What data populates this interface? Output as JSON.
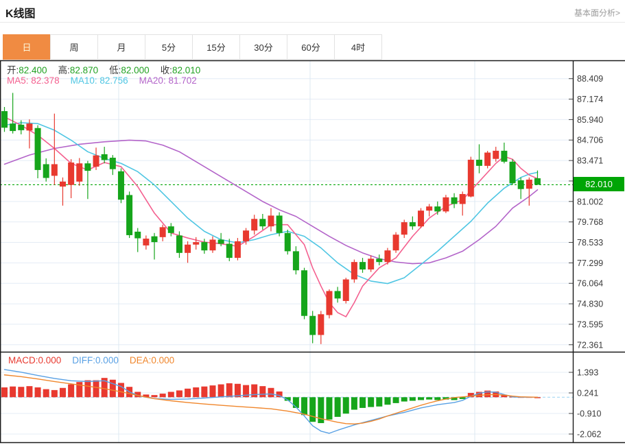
{
  "header": {
    "title": "K线图",
    "analysis_link": "基本面分析>"
  },
  "tabs": {
    "items": [
      "日",
      "周",
      "月",
      "5分",
      "15分",
      "30分",
      "60分",
      "4时"
    ],
    "active_index": 0
  },
  "ohlc": {
    "open_label": "开:",
    "open": "82.400",
    "high_label": "高:",
    "high": "82.870",
    "low_label": "低:",
    "low": "82.000",
    "close_label": "收:",
    "close": "82.010"
  },
  "ma_row": {
    "ma5_label": "MA5:",
    "ma5": "82.378",
    "ma10_label": "MA10:",
    "ma10": "82.756",
    "ma20_label": "MA20:",
    "ma20": "81.702"
  },
  "macd_row": {
    "macd_label": "MACD:",
    "macd": "0.000",
    "diff_label": "DIFF:",
    "diff": "0.000",
    "dea_label": "DEA:",
    "dea": "0.000"
  },
  "price_badge": "82.010",
  "colors": {
    "up": "#e8392f",
    "down": "#16a51b",
    "ma5": "#f4608f",
    "ma10": "#4fc6e3",
    "ma20": "#b364c9",
    "diff": "#58a0e4",
    "dea": "#f0862b",
    "price_line": "#00a506",
    "badge_bg": "#00a506",
    "grid": "#e4ecf5",
    "vgrid": "#dce8f2",
    "axis": "#1a1a1a",
    "tick_text": "#3a3a3a",
    "zero_dash": "#a3d7f2",
    "tab_active_bg": "#f08b42"
  },
  "chart_data": {
    "type": "candlestick_with_macd",
    "title": "K线图 (daily candlestick with MA5/MA10/MA20 and MACD)",
    "main": {
      "yticks": [
        88.409,
        87.174,
        85.94,
        84.706,
        83.471,
        82.237,
        81.002,
        79.768,
        78.533,
        77.299,
        76.064,
        74.83,
        73.595,
        72.361
      ],
      "ylim": [
        71.8,
        89.0
      ],
      "price_line": 82.01,
      "candles_ohlc": [
        [
          86.45,
          86.7,
          85.2,
          85.45
        ],
        [
          85.7,
          87.55,
          85.1,
          85.25
        ],
        [
          85.63,
          85.9,
          85.05,
          85.3
        ],
        [
          85.28,
          85.95,
          84.2,
          85.7
        ],
        [
          85.43,
          85.6,
          82.4,
          82.9
        ],
        [
          83.25,
          83.6,
          82.2,
          82.42
        ],
        [
          82.55,
          86.3,
          82.0,
          83.25
        ],
        [
          81.9,
          82.45,
          80.75,
          82.2
        ],
        [
          82.0,
          83.55,
          81.2,
          83.35
        ],
        [
          82.2,
          83.62,
          81.95,
          83.3
        ],
        [
          83.3,
          83.45,
          81.15,
          82.85
        ],
        [
          83.1,
          84.25,
          82.9,
          83.78
        ],
        [
          83.85,
          84.3,
          83.3,
          83.5
        ],
        [
          83.64,
          83.8,
          82.6,
          82.95
        ],
        [
          82.82,
          83.0,
          80.9,
          81.11
        ],
        [
          81.39,
          81.6,
          78.8,
          78.97
        ],
        [
          79.18,
          79.4,
          77.95,
          78.78
        ],
        [
          78.35,
          78.95,
          78.1,
          78.76
        ],
        [
          78.9,
          79.1,
          77.5,
          78.55
        ],
        [
          78.85,
          79.6,
          78.6,
          79.45
        ],
        [
          79.5,
          79.7,
          78.9,
          79.1
        ],
        [
          78.95,
          79.2,
          77.6,
          77.9
        ],
        [
          77.9,
          78.6,
          77.3,
          78.4
        ],
        [
          78.4,
          78.85,
          78.1,
          78.55
        ],
        [
          78.55,
          78.75,
          77.85,
          78.05
        ],
        [
          78.05,
          78.9,
          77.9,
          78.7
        ],
        [
          78.7,
          79.1,
          78.3,
          78.45
        ],
        [
          78.45,
          78.75,
          77.4,
          77.6
        ],
        [
          77.6,
          78.8,
          77.45,
          78.6
        ],
        [
          78.6,
          79.4,
          78.4,
          79.25
        ],
        [
          79.25,
          80.2,
          79.0,
          79.95
        ],
        [
          79.95,
          80.25,
          79.3,
          79.5
        ],
        [
          79.5,
          80.6,
          79.2,
          80.15
        ],
        [
          80.15,
          80.35,
          78.9,
          79.1
        ],
        [
          79.1,
          79.3,
          77.8,
          78.0
        ],
        [
          78.0,
          78.3,
          76.6,
          76.85
        ],
        [
          76.85,
          77.0,
          73.9,
          74.1
        ],
        [
          74.1,
          74.4,
          72.45,
          72.95
        ],
        [
          72.95,
          74.4,
          72.4,
          74.2
        ],
        [
          74.15,
          75.7,
          73.95,
          75.6
        ],
        [
          75.6,
          75.85,
          74.9,
          75.15
        ],
        [
          75.0,
          76.4,
          74.85,
          76.3
        ],
        [
          76.3,
          77.5,
          76.1,
          77.35
        ],
        [
          77.35,
          77.6,
          76.7,
          76.9
        ],
        [
          76.9,
          77.75,
          76.75,
          77.55
        ],
        [
          77.55,
          77.8,
          77.15,
          77.35
        ],
        [
          77.35,
          78.2,
          77.2,
          78.05
        ],
        [
          78.05,
          79.15,
          77.9,
          79.0
        ],
        [
          79.0,
          79.9,
          78.8,
          79.75
        ],
        [
          79.75,
          80.1,
          79.3,
          79.5
        ],
        [
          79.5,
          80.6,
          79.4,
          80.45
        ],
        [
          80.45,
          80.85,
          80.1,
          80.7
        ],
        [
          80.7,
          81.0,
          80.2,
          80.4
        ],
        [
          80.4,
          81.4,
          80.3,
          81.25
        ],
        [
          81.25,
          81.5,
          80.6,
          80.85
        ],
        [
          80.85,
          81.6,
          80.15,
          81.45
        ],
        [
          81.3,
          83.7,
          81.25,
          83.52
        ],
        [
          83.52,
          84.45,
          82.7,
          83.15
        ],
        [
          83.15,
          84.05,
          83.0,
          83.95
        ],
        [
          83.57,
          84.3,
          83.4,
          84.06
        ],
        [
          84.06,
          84.55,
          83.3,
          83.4
        ],
        [
          83.4,
          83.55,
          82.0,
          82.1
        ],
        [
          82.28,
          82.45,
          81.15,
          81.75
        ],
        [
          81.77,
          82.45,
          80.75,
          82.32
        ],
        [
          82.4,
          82.87,
          82.0,
          82.01
        ]
      ],
      "ma5_points": [
        [
          0,
          86.1
        ],
        [
          2,
          85.6
        ],
        [
          4,
          85.0
        ],
        [
          6,
          84.2
        ],
        [
          8,
          83.3
        ],
        [
          10,
          82.9
        ],
        [
          12,
          83.35
        ],
        [
          14,
          83.1
        ],
        [
          16,
          81.9
        ],
        [
          18,
          80.3
        ],
        [
          20,
          79.1
        ],
        [
          22,
          78.8
        ],
        [
          24,
          78.55
        ],
        [
          26,
          78.45
        ],
        [
          28,
          78.3
        ],
        [
          30,
          78.9
        ],
        [
          32,
          79.6
        ],
        [
          34,
          79.6
        ],
        [
          36,
          78.4
        ],
        [
          37,
          77.0
        ],
        [
          38,
          75.9
        ],
        [
          39,
          74.9
        ],
        [
          40,
          74.3
        ],
        [
          41,
          74.05
        ],
        [
          42,
          74.9
        ],
        [
          43,
          75.9
        ],
        [
          45,
          77.0
        ],
        [
          47,
          77.6
        ],
        [
          49,
          78.9
        ],
        [
          51,
          80.0
        ],
        [
          53,
          80.7
        ],
        [
          55,
          81.1
        ],
        [
          57,
          82.2
        ],
        [
          59,
          83.3
        ],
        [
          60,
          83.72
        ],
        [
          61,
          83.55
        ],
        [
          62,
          83.0
        ],
        [
          63,
          82.6
        ],
        [
          64,
          82.378
        ]
      ],
      "ma10_points": [
        [
          0,
          85.6
        ],
        [
          2,
          85.75
        ],
        [
          4,
          85.7
        ],
        [
          6,
          85.3
        ],
        [
          8,
          84.7
        ],
        [
          10,
          84.0
        ],
        [
          12,
          83.6
        ],
        [
          14,
          83.3
        ],
        [
          16,
          82.8
        ],
        [
          18,
          82.0
        ],
        [
          20,
          81.0
        ],
        [
          22,
          80.0
        ],
        [
          24,
          79.2
        ],
        [
          26,
          78.7
        ],
        [
          28,
          78.5
        ],
        [
          30,
          78.7
        ],
        [
          32,
          79.0
        ],
        [
          34,
          79.2
        ],
        [
          36,
          78.9
        ],
        [
          38,
          78.2
        ],
        [
          40,
          77.3
        ],
        [
          42,
          76.6
        ],
        [
          44,
          76.2
        ],
        [
          46,
          76.05
        ],
        [
          48,
          76.4
        ],
        [
          50,
          77.2
        ],
        [
          52,
          78.0
        ],
        [
          54,
          78.9
        ],
        [
          56,
          79.8
        ],
        [
          58,
          80.9
        ],
        [
          60,
          81.8
        ],
        [
          62,
          82.45
        ],
        [
          63,
          82.65
        ],
        [
          64,
          82.756
        ]
      ],
      "ma20_points": [
        [
          0,
          83.25
        ],
        [
          3,
          83.8
        ],
        [
          6,
          84.2
        ],
        [
          9,
          84.45
        ],
        [
          12,
          84.6
        ],
        [
          15,
          84.7
        ],
        [
          17,
          84.65
        ],
        [
          19,
          84.4
        ],
        [
          21,
          84.0
        ],
        [
          23,
          83.4
        ],
        [
          25,
          82.8
        ],
        [
          27,
          82.2
        ],
        [
          29,
          81.6
        ],
        [
          31,
          81.0
        ],
        [
          33,
          80.5
        ],
        [
          35,
          80.1
        ],
        [
          37,
          79.5
        ],
        [
          39,
          78.9
        ],
        [
          41,
          78.35
        ],
        [
          43,
          77.9
        ],
        [
          45,
          77.55
        ],
        [
          47,
          77.35
        ],
        [
          49,
          77.25
        ],
        [
          51,
          77.3
        ],
        [
          53,
          77.6
        ],
        [
          55,
          78.0
        ],
        [
          57,
          78.7
        ],
        [
          59,
          79.5
        ],
        [
          61,
          80.6
        ],
        [
          63,
          81.3
        ],
        [
          64,
          81.702
        ]
      ]
    },
    "macd": {
      "yticks": [
        1.393,
        0.241,
        -0.91,
        -2.062
      ],
      "ylim": [
        -2.6,
        2.0
      ],
      "histogram": [
        0.55,
        0.6,
        0.58,
        0.62,
        0.55,
        0.45,
        0.4,
        0.52,
        0.72,
        0.85,
        0.95,
        0.95,
        1.08,
        0.98,
        0.8,
        0.58,
        0.3,
        0.15,
        0.12,
        0.2,
        0.3,
        0.38,
        0.48,
        0.55,
        0.6,
        0.66,
        0.72,
        0.78,
        0.75,
        0.68,
        0.72,
        0.62,
        0.52,
        0.32,
        -0.2,
        -0.6,
        -1.0,
        -1.38,
        -1.45,
        -1.25,
        -1.1,
        -0.92,
        -0.7,
        -0.6,
        -0.55,
        -0.52,
        -0.42,
        -0.33,
        -0.24,
        -0.2,
        -0.16,
        -0.13,
        -0.16,
        -0.13,
        -0.16,
        -0.1,
        0.24,
        0.3,
        0.37,
        0.32,
        0.14,
        0.04,
        0.02,
        0.02,
        0.0
      ],
      "diff_points": [
        [
          0,
          1.55
        ],
        [
          2,
          1.4
        ],
        [
          4,
          1.22
        ],
        [
          6,
          1.05
        ],
        [
          8,
          0.92
        ],
        [
          10,
          0.88
        ],
        [
          12,
          0.92
        ],
        [
          14,
          0.6
        ],
        [
          15,
          0.3
        ],
        [
          16,
          0.1
        ],
        [
          17,
          0.0
        ],
        [
          18,
          -0.08
        ],
        [
          20,
          -0.12
        ],
        [
          22,
          -0.1
        ],
        [
          24,
          -0.05
        ],
        [
          26,
          0.02
        ],
        [
          28,
          0.08
        ],
        [
          30,
          0.15
        ],
        [
          32,
          0.18
        ],
        [
          33,
          0.1
        ],
        [
          34,
          -0.15
        ],
        [
          35,
          -0.55
        ],
        [
          36,
          -1.05
        ],
        [
          37,
          -1.6
        ],
        [
          38,
          -1.9
        ],
        [
          39,
          -2.02
        ],
        [
          40,
          -1.85
        ],
        [
          42,
          -1.55
        ],
        [
          44,
          -1.3
        ],
        [
          46,
          -1.05
        ],
        [
          48,
          -0.85
        ],
        [
          50,
          -0.6
        ],
        [
          52,
          -0.42
        ],
        [
          54,
          -0.3
        ],
        [
          55,
          -0.18
        ],
        [
          56,
          0.05
        ],
        [
          57,
          0.22
        ],
        [
          58,
          0.3
        ],
        [
          59,
          0.28
        ],
        [
          60,
          0.15
        ],
        [
          61,
          0.02
        ],
        [
          62,
          0.0
        ],
        [
          64,
          0.0
        ]
      ],
      "dea_points": [
        [
          0,
          1.25
        ],
        [
          2,
          1.15
        ],
        [
          4,
          1.02
        ],
        [
          6,
          0.88
        ],
        [
          8,
          0.75
        ],
        [
          10,
          0.62
        ],
        [
          12,
          0.48
        ],
        [
          14,
          0.3
        ],
        [
          16,
          0.1
        ],
        [
          18,
          -0.08
        ],
        [
          20,
          -0.2
        ],
        [
          22,
          -0.3
        ],
        [
          24,
          -0.38
        ],
        [
          26,
          -0.45
        ],
        [
          28,
          -0.52
        ],
        [
          30,
          -0.58
        ],
        [
          32,
          -0.65
        ],
        [
          34,
          -0.78
        ],
        [
          36,
          -0.95
        ],
        [
          38,
          -1.2
        ],
        [
          40,
          -1.4
        ],
        [
          41,
          -1.48
        ],
        [
          42,
          -1.5
        ],
        [
          43,
          -1.45
        ],
        [
          44,
          -1.35
        ],
        [
          45,
          -1.22
        ],
        [
          46,
          -1.05
        ],
        [
          47,
          -0.9
        ],
        [
          48,
          -0.75
        ],
        [
          49,
          -0.6
        ],
        [
          50,
          -0.45
        ],
        [
          51,
          -0.32
        ],
        [
          52,
          -0.2
        ],
        [
          53,
          -0.1
        ],
        [
          54,
          -0.02
        ],
        [
          55,
          0.02
        ],
        [
          56,
          0.06
        ],
        [
          57,
          0.1
        ],
        [
          58,
          0.14
        ],
        [
          59,
          0.15
        ],
        [
          60,
          0.12
        ],
        [
          61,
          0.06
        ],
        [
          62,
          0.02
        ],
        [
          64,
          0.0
        ]
      ]
    }
  }
}
